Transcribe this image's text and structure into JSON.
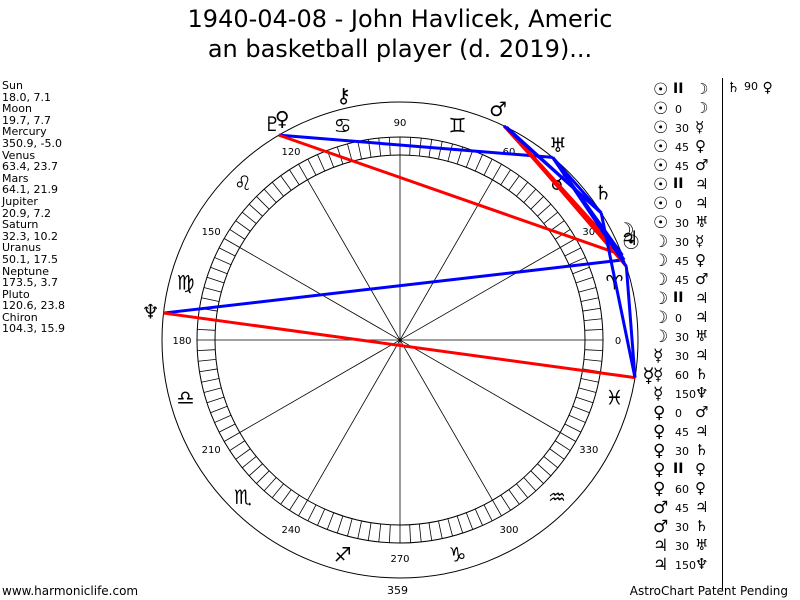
{
  "title": {
    "line1": "1940-04-08 - John Havlicek, Americ",
    "line2": "an basketball player (d. 2019)..."
  },
  "planets": [
    {
      "name": "Sun",
      "coords": "18.0, 7.1",
      "lon": 18.0,
      "glyph": "☉",
      "label_lon": 23
    },
    {
      "name": "Moon",
      "coords": "19.7, 7.7",
      "lon": 19.7,
      "glyph": "☽",
      "label_lon": 26
    },
    {
      "name": "Mercury",
      "coords": "350.9, -5.0",
      "lon": 350.9,
      "glyph": "☿",
      "label_lon": 352
    },
    {
      "name": "Venus",
      "coords": "63.4, 23.7",
      "lon": 63.4,
      "glyph": "♀",
      "label_lon": 118
    },
    {
      "name": "Mars",
      "coords": "64.1, 21.9",
      "lon": 64.1,
      "glyph": "♂",
      "label_lon": 67
    },
    {
      "name": "Jupiter",
      "coords": "20.9, 7.2",
      "lon": 20.9,
      "glyph": "♃",
      "label_lon": 24
    },
    {
      "name": "Saturn",
      "coords": "32.3, 10.2",
      "lon": 32.3,
      "glyph": "♄",
      "label_lon": 36
    },
    {
      "name": "Uranus",
      "coords": "50.1, 17.5",
      "lon": 50.1,
      "glyph": "♅",
      "label_lon": 51
    },
    {
      "name": "Neptune",
      "coords": "173.5, 3.7",
      "lon": 173.5,
      "glyph": "♆",
      "label_lon": 173.5
    },
    {
      "name": "Pluto",
      "coords": "120.6, 23.8",
      "lon": 120.6,
      "glyph": "♇",
      "label_lon": 120.6
    },
    {
      "name": "Chiron",
      "coords": "104.3, 15.9",
      "lon": 104.3,
      "glyph": "⚷",
      "label_lon": 103
    }
  ],
  "degree_labels": [
    {
      "value": "0",
      "deg": 0
    },
    {
      "value": "30",
      "deg": 30
    },
    {
      "value": "60",
      "deg": 60
    },
    {
      "value": "90",
      "deg": 90
    },
    {
      "value": "120",
      "deg": 120
    },
    {
      "value": "150",
      "deg": 150
    },
    {
      "value": "180",
      "deg": 180
    },
    {
      "value": "210",
      "deg": 210
    },
    {
      "value": "240",
      "deg": 240
    },
    {
      "value": "270",
      "deg": 270
    },
    {
      "value": "300",
      "deg": 300
    },
    {
      "value": "330",
      "deg": 330
    }
  ],
  "signs": [
    {
      "glyph": "♓",
      "deg": 345
    },
    {
      "glyph": "♈",
      "deg": 15
    },
    {
      "glyph": "♉",
      "deg": 45
    },
    {
      "glyph": "♊",
      "deg": 75
    },
    {
      "glyph": "♋",
      "deg": 105
    },
    {
      "glyph": "♌",
      "deg": 135
    },
    {
      "glyph": "♍",
      "deg": 165
    },
    {
      "glyph": "♎",
      "deg": 195
    },
    {
      "glyph": "♏",
      "deg": 225
    },
    {
      "glyph": "♐",
      "deg": 255
    },
    {
      "glyph": "♑",
      "deg": 285
    },
    {
      "glyph": "♒",
      "deg": 315
    }
  ],
  "aspect_lines": [
    {
      "from": 120.6,
      "to": 50.1,
      "color": "#0000ff"
    },
    {
      "from": 120.6,
      "to": 20.9,
      "color": "#ff0000"
    },
    {
      "from": 173.5,
      "to": 19.7,
      "color": "#0000ff"
    },
    {
      "from": 173.5,
      "to": 350.9,
      "color": "#ff0000"
    },
    {
      "from": 63.4,
      "to": 18.0,
      "color": "#ff0000"
    },
    {
      "from": 64.1,
      "to": 19.7,
      "color": "#ff0000"
    },
    {
      "from": 63.4,
      "to": 20.9,
      "color": "#ff0000"
    },
    {
      "from": 64.1,
      "to": 32.3,
      "color": "#0000ff"
    },
    {
      "from": 50.1,
      "to": 18.0,
      "color": "#0000ff"
    },
    {
      "from": 50.1,
      "to": 32.3,
      "color": "#0000ff"
    },
    {
      "from": 50.1,
      "to": 20.9,
      "color": "#0000ff"
    },
    {
      "from": 18.0,
      "to": 350.9,
      "color": "#0000ff"
    },
    {
      "from": 32.3,
      "to": 350.9,
      "color": "#0000ff"
    },
    {
      "from": 63.4,
      "to": 32.3,
      "color": "#0000ff"
    },
    {
      "from": 50.1,
      "to": 19.7,
      "color": "#0000ff"
    }
  ],
  "aspects": [
    {
      "p1": "☉",
      "aspect": "II",
      "p2": "☽"
    },
    {
      "p1": "☉",
      "aspect": "0",
      "p2": "☽"
    },
    {
      "p1": "☉",
      "aspect": "30",
      "p2": "☿"
    },
    {
      "p1": "☉",
      "aspect": "45",
      "p2": "♀"
    },
    {
      "p1": "☉",
      "aspect": "45",
      "p2": "♂"
    },
    {
      "p1": "☉",
      "aspect": "II",
      "p2": "♃"
    },
    {
      "p1": "☉",
      "aspect": "0",
      "p2": "♃"
    },
    {
      "p1": "☉",
      "aspect": "30",
      "p2": "♅"
    },
    {
      "p1": "☽",
      "aspect": "30",
      "p2": "☿"
    },
    {
      "p1": "☽",
      "aspect": "45",
      "p2": "♀"
    },
    {
      "p1": "☽",
      "aspect": "45",
      "p2": "♂"
    },
    {
      "p1": "☽",
      "aspect": "II",
      "p2": "♃"
    },
    {
      "p1": "☽",
      "aspect": "0",
      "p2": "♃"
    },
    {
      "p1": "☽",
      "aspect": "30",
      "p2": "♅"
    },
    {
      "p1": "☿",
      "aspect": "30",
      "p2": "♃"
    },
    {
      "p1": "☿",
      "aspect": "60",
      "p2": "♄"
    },
    {
      "p1": "☿",
      "aspect": "150",
      "p2": "♆"
    },
    {
      "p1": "♀",
      "aspect": "0",
      "p2": "♂"
    },
    {
      "p1": "♀",
      "aspect": "45",
      "p2": "♃"
    },
    {
      "p1": "♀",
      "aspect": "30",
      "p2": "♄"
    },
    {
      "p1": "♀",
      "aspect": "II",
      "p2": "♀"
    },
    {
      "p1": "♀",
      "aspect": "60",
      "p2": "♀"
    },
    {
      "p1": "♂",
      "aspect": "45",
      "p2": "♃"
    },
    {
      "p1": "♂",
      "aspect": "30",
      "p2": "♄"
    },
    {
      "p1": "♃",
      "aspect": "30",
      "p2": "♅"
    },
    {
      "p1": "♃",
      "aspect": "150",
      "p2": "♆"
    }
  ],
  "extra_aspect": {
    "p1": "♄",
    "aspect": "90",
    "p2": "♀"
  },
  "footer": {
    "left": "www.harmoniclife.com",
    "center": "359",
    "right": "AstroChart Patent Pending"
  }
}
